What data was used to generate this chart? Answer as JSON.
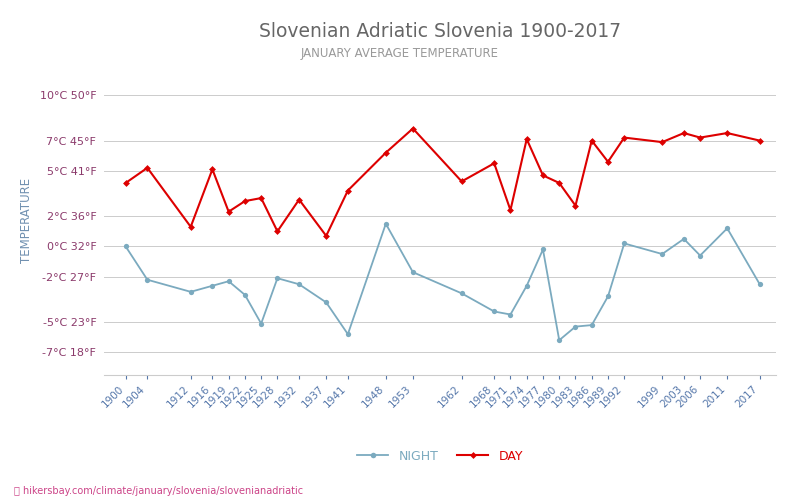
{
  "title": "Slovenian Adriatic Slovenia 1900-2017",
  "subtitle": "JANUARY AVERAGE TEMPERATURE",
  "ylabel": "TEMPERATURE",
  "footer": "hikersbay.com/climate/january/slovenia/slovenianadriatic",
  "years": [
    1900,
    1904,
    1912,
    1916,
    1919,
    1922,
    1925,
    1928,
    1932,
    1937,
    1941,
    1948,
    1953,
    1962,
    1968,
    1971,
    1974,
    1977,
    1980,
    1983,
    1986,
    1989,
    1992,
    1999,
    2003,
    2006,
    2011,
    2017
  ],
  "day_temps": [
    4.2,
    5.2,
    1.3,
    5.1,
    2.3,
    3.0,
    3.2,
    1.0,
    3.1,
    0.7,
    3.7,
    6.2,
    7.8,
    4.3,
    5.5,
    2.4,
    7.1,
    4.7,
    4.2,
    2.7,
    7.0,
    5.6,
    7.2,
    6.9,
    7.5,
    7.2,
    7.5,
    7.0
  ],
  "night_temps": [
    0.0,
    -2.2,
    -3.0,
    -2.6,
    -2.3,
    -3.2,
    -5.1,
    -2.1,
    -2.5,
    -3.7,
    -5.8,
    1.5,
    -1.7,
    -3.1,
    -4.3,
    -4.5,
    -2.6,
    -0.2,
    -6.2,
    -5.3,
    -5.2,
    -3.3,
    0.2,
    -0.5,
    0.5,
    -0.6,
    1.2,
    -2.5
  ],
  "day_color": "#dd0000",
  "night_color": "#7baabf",
  "bg_color": "#ffffff",
  "grid_color": "#cccccc",
  "title_color": "#666666",
  "subtitle_color": "#999999",
  "ylabel_color": "#7090b0",
  "tick_color_left": "#8b3a6b",
  "tick_color_x": "#5577aa",
  "yticks_celsius": [
    -7,
    -5,
    -2,
    0,
    2,
    5,
    7,
    10
  ],
  "yticks_fahrenheit": [
    18,
    23,
    27,
    32,
    36,
    41,
    45,
    50
  ],
  "ylim_min": -8.5,
  "ylim_max": 12.0,
  "xlim_min": 1896,
  "xlim_max": 2020,
  "legend_night_label": "NIGHT",
  "legend_day_label": "DAY"
}
